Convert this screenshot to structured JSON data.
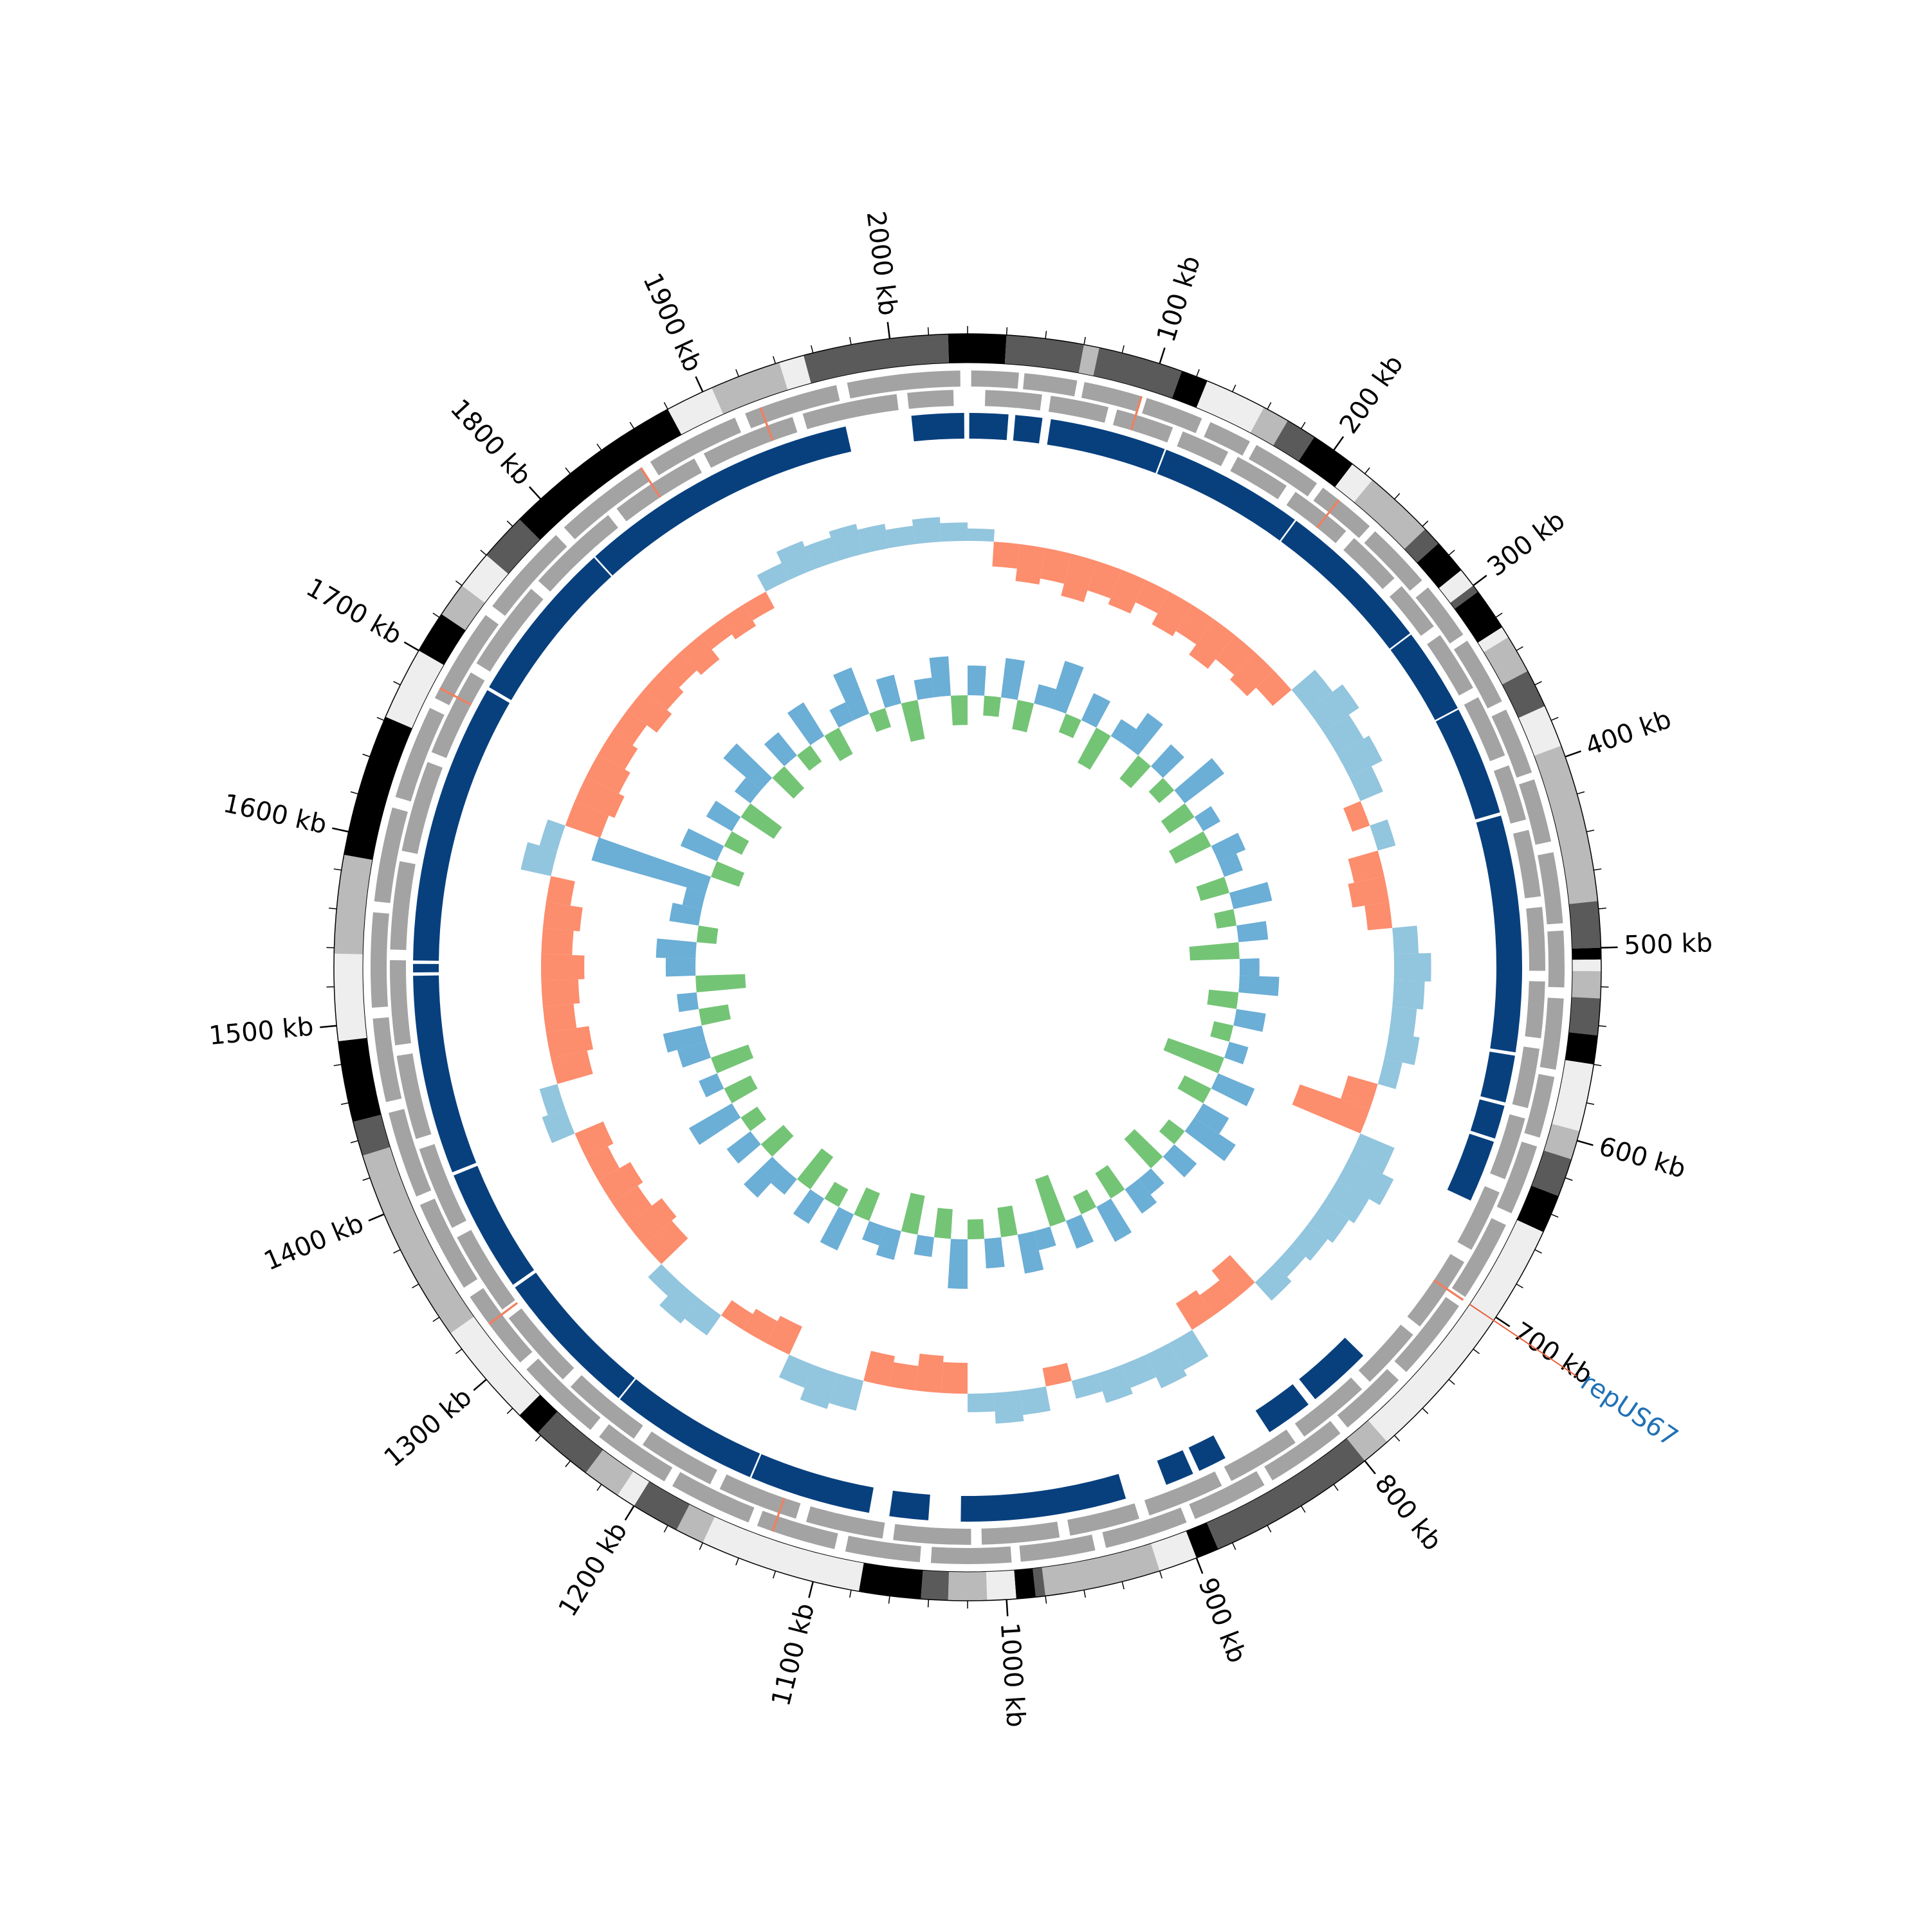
{
  "chart_data": {
    "type": "circos",
    "length_kb": 2040,
    "minor_tick_step": 20,
    "ticks": [
      {
        "value": 100,
        "label": "100 kb"
      },
      {
        "value": 200,
        "label": "200 kb"
      },
      {
        "value": 300,
        "label": "300 kb"
      },
      {
        "value": 400,
        "label": "400 kb"
      },
      {
        "value": 500,
        "label": "500 kb"
      },
      {
        "value": 600,
        "label": "600 kb"
      },
      {
        "value": 700,
        "label": "700 kb"
      },
      {
        "value": 800,
        "label": "800 kb"
      },
      {
        "value": 900,
        "label": "900 kb"
      },
      {
        "value": 1000,
        "label": "1000 kb"
      },
      {
        "value": 1100,
        "label": "1100 kb"
      },
      {
        "value": 1200,
        "label": "1200 kb"
      },
      {
        "value": 1300,
        "label": "1300 kb"
      },
      {
        "value": 1400,
        "label": "1400 kb"
      },
      {
        "value": 1500,
        "label": "1500 kb"
      },
      {
        "value": 1600,
        "label": "1600 kb"
      },
      {
        "value": 1700,
        "label": "1700 kb"
      },
      {
        "value": 1800,
        "label": "1800 kb"
      },
      {
        "value": 1900,
        "label": "1900 kb"
      },
      {
        "value": 2000,
        "label": "2000 kb"
      }
    ],
    "contigs": {
      "starts": [
        0,
        20,
        60,
        68,
        112,
        126,
        158,
        172,
        188,
        212,
        225,
        262,
        272,
        290,
        300,
        304,
        326,
        332,
        352,
        372,
        394,
        476,
        500,
        506,
        512,
        526,
        545,
        560,
        595,
        610,
        630,
        650,
        785,
        800,
        888,
        900,
        920,
        980,
        985,
        995,
        1010,
        1030,
        1044,
        1076,
        1160,
        1175,
        1200,
        1210,
        1230,
        1262,
        1275,
        1330,
        1432,
        1450,
        1492,
        1537,
        1588,
        1662,
        1700,
        1722,
        1740,
        1760,
        1785,
        1880,
        1905,
        1942,
        1955,
        2030
      ],
      "ends": [
        20,
        60,
        68,
        112,
        126,
        158,
        172,
        188,
        212,
        225,
        262,
        272,
        290,
        300,
        304,
        326,
        332,
        352,
        372,
        394,
        476,
        500,
        506,
        512,
        526,
        545,
        560,
        595,
        610,
        630,
        650,
        785,
        800,
        888,
        900,
        920,
        980,
        985,
        995,
        1010,
        1030,
        1044,
        1076,
        1160,
        1175,
        1200,
        1210,
        1230,
        1262,
        1275,
        1330,
        1432,
        1450,
        1492,
        1537,
        1588,
        1662,
        1700,
        1722,
        1740,
        1760,
        1785,
        1880,
        1905,
        1942,
        1955,
        2030,
        2040
      ],
      "colors": [
        "#000000",
        "#5a5a5a",
        "#bababa",
        "#5a5a5a",
        "#000000",
        "#eeeeee",
        "#bababa",
        "#5a5a5a",
        "#000000",
        "#eeeeee",
        "#bababa",
        "#5a5a5a",
        "#000000",
        "#eeeeee",
        "#5a5a5a",
        "#000000",
        "#eeeeee",
        "#bababa",
        "#5a5a5a",
        "#eeeeee",
        "#bababa",
        "#5a5a5a",
        "#000000",
        "#eeeeee",
        "#bababa",
        "#5a5a5a",
        "#000000",
        "#eeeeee",
        "#bababa",
        "#5a5a5a",
        "#000000",
        "#eeeeee",
        "#bababa",
        "#5a5a5a",
        "#000000",
        "#eeeeee",
        "#bababa",
        "#5a5a5a",
        "#000000",
        "#eeeeee",
        "#bababa",
        "#5a5a5a",
        "#000000",
        "#eeeeee",
        "#bababa",
        "#5a5a5a",
        "#eeeeee",
        "#bababa",
        "#5a5a5a",
        "#000000",
        "#eeeeee",
        "#bababa",
        "#5a5a5a",
        "#000000",
        "#eeeeee",
        "#bababa",
        "#000000",
        "#eeeeee",
        "#000000",
        "#bababa",
        "#eeeeee",
        "#5a5a5a",
        "#000000",
        "#eeeeee",
        "#bababa",
        "#eeeeee",
        "#5a5a5a",
        "#000000"
      ]
    },
    "genes": {
      "color": "#a3a3a3",
      "rna_color": "#f08060",
      "forward": [
        [
          2,
          28
        ],
        [
          31,
          60
        ],
        [
          64,
          96
        ],
        [
          99,
          131
        ],
        [
          136,
          160
        ],
        [
          164,
          203
        ],
        [
          207,
          240
        ],
        [
          244,
          281
        ],
        [
          286,
          318
        ],
        [
          322,
          360
        ],
        [
          365,
          402
        ],
        [
          406,
          441
        ],
        [
          447,
          486
        ],
        [
          490,
          521
        ],
        [
          527,
          566
        ],
        [
          570,
          604
        ],
        [
          609,
          648
        ],
        [
          655,
          700
        ],
        [
          706,
          752
        ],
        [
          758,
          796
        ],
        [
          801,
          846
        ],
        [
          851,
          893
        ],
        [
          898,
          944
        ],
        [
          950,
          991
        ],
        [
          996,
          1040
        ],
        [
          1046,
          1087
        ],
        [
          1093,
          1137
        ],
        [
          1142,
          1188
        ],
        [
          1193,
          1236
        ],
        [
          1242,
          1290
        ],
        [
          1295,
          1340
        ],
        [
          1346,
          1397
        ],
        [
          1402,
          1450
        ],
        [
          1456,
          1502
        ],
        [
          1508,
          1560
        ],
        [
          1566,
          1618
        ],
        [
          1624,
          1676
        ],
        [
          1682,
          1735
        ],
        [
          1741,
          1793
        ],
        [
          1799,
          1852
        ],
        [
          1858,
          1910
        ],
        [
          1916,
          1968
        ],
        [
          1974,
          2036
        ]
      ],
      "reverse": [
        [
          10,
          42
        ],
        [
          47,
          80
        ],
        [
          85,
          118
        ],
        [
          124,
          152
        ],
        [
          158,
          190
        ],
        [
          196,
          232
        ],
        [
          238,
          270
        ],
        [
          276,
          305
        ],
        [
          311,
          346
        ],
        [
          352,
          388
        ],
        [
          394,
          426
        ],
        [
          432,
          470
        ],
        [
          476,
          512
        ],
        [
          518,
          550
        ],
        [
          556,
          590
        ],
        [
          596,
          632
        ],
        [
          640,
          676
        ],
        [
          684,
          728
        ],
        [
          734,
          770
        ],
        [
          776,
          818
        ],
        [
          824,
          866
        ],
        [
          872,
          916
        ],
        [
          922,
          962
        ],
        [
          968,
          1012
        ],
        [
          1018,
          1062
        ],
        [
          1068,
          1112
        ],
        [
          1118,
          1164
        ],
        [
          1170,
          1214
        ],
        [
          1220,
          1266
        ],
        [
          1272,
          1318
        ],
        [
          1324,
          1372
        ],
        [
          1378,
          1426
        ],
        [
          1432,
          1480
        ],
        [
          1486,
          1534
        ],
        [
          1540,
          1590
        ],
        [
          1596,
          1648
        ],
        [
          1654,
          1704
        ],
        [
          1710,
          1762
        ],
        [
          1768,
          1822
        ],
        [
          1828,
          1880
        ],
        [
          1886,
          1940
        ],
        [
          1946,
          2000
        ],
        [
          2006,
          2032
        ]
      ],
      "rna": [
        96,
        218,
        702,
        1128,
        1322,
        1688,
        1852,
        1925
      ]
    },
    "alignment": {
      "color": "#08407e",
      "blocks": [
        [
          2007,
          2038
        ],
        [
          1,
          24
        ],
        [
          28,
          44
        ],
        [
          49,
          118
        ],
        [
          119,
          205
        ],
        [
          206,
          300
        ],
        [
          301,
          352
        ],
        [
          353,
          418
        ],
        [
          420,
          560
        ],
        [
          562,
          590
        ],
        [
          592,
          612
        ],
        [
          614,
          651
        ],
        [
          762,
          800
        ],
        [
          805,
          833
        ],
        [
          863,
          880
        ],
        [
          884,
          901
        ],
        [
          926,
          1024
        ],
        [
          1043,
          1066
        ],
        [
          1078,
          1150
        ],
        [
          1151,
          1240
        ],
        [
          1241,
          1330
        ],
        [
          1332,
          1405
        ],
        [
          1407,
          1525
        ],
        [
          1527,
          1532
        ],
        [
          1534,
          1700
        ],
        [
          1702,
          1800
        ],
        [
          1801,
          1968
        ]
      ]
    },
    "gc_skew": {
      "window_kb": 20,
      "positive_color": "#92c5de",
      "negative_color": "#fc8d6d",
      "values": [
        0.02,
        -0.04,
        -0.06,
        -0.05,
        -0.07,
        -0.05,
        -0.06,
        -0.04,
        -0.06,
        -0.05,
        -0.07,
        -0.05,
        -0.06,
        -0.04,
        0.05,
        0.07,
        0.05,
        0.06,
        0.04,
        -0.03,
        0.03,
        -0.05,
        -0.06,
        -0.04,
        0.04,
        0.06,
        0.05,
        0.04,
        0.05,
        0.03,
        -0.05,
        -0.12,
        0.06,
        0.08,
        0.06,
        0.05,
        0.04,
        0.03,
        0.04,
        -0.06,
        -0.04,
        -0.05,
        0.05,
        0.06,
        0.04,
        0.05,
        0.03,
        -0.03,
        0.04,
        0.05,
        0.03,
        -0.05,
        -0.06,
        -0.04,
        -0.05,
        0.05,
        0.06,
        0.04,
        -0.05,
        -0.04,
        -0.03,
        0.04,
        0.05,
        0.03,
        -0.06,
        -0.07,
        -0.05,
        -0.06,
        -0.04,
        -0.05,
        0.04,
        0.03,
        -0.06,
        -0.07,
        -0.05,
        -0.06,
        -0.07,
        -0.05,
        -0.06,
        -0.04,
        0.05,
        0.03,
        -0.06,
        -0.07,
        -0.06,
        -0.05,
        -0.04,
        -0.06,
        -0.05,
        -0.04,
        -0.05,
        -0.03,
        -0.04,
        -0.03,
        0.03,
        0.05,
        0.04,
        0.05,
        0.04,
        0.03,
        0.04,
        0.03
      ]
    },
    "gc_content": {
      "window_kb": 20,
      "positive_color": "#6baed6",
      "negative_color": "#74c476",
      "values": [
        0.03,
        -0.02,
        0.04,
        -0.03,
        0.02,
        0.05,
        -0.02,
        0.03,
        -0.04,
        0.02,
        0.04,
        -0.03,
        0.03,
        -0.02,
        0.05,
        -0.03,
        0.02,
        -0.04,
        0.03,
        0.02,
        -0.03,
        0.04,
        -0.02,
        0.03,
        -0.05,
        0.02,
        0.04,
        -0.03,
        0.03,
        -0.02,
        0.02,
        -0.06,
        0.04,
        -0.03,
        0.03,
        0.05,
        -0.02,
        0.03,
        -0.04,
        0.02,
        0.03,
        -0.03,
        0.04,
        -0.02,
        0.03,
        -0.05,
        0.02,
        0.04,
        -0.03,
        0.03,
        -0.02,
        0.05,
        -0.03,
        0.02,
        -0.04,
        0.03,
        0.02,
        -0.03,
        0.04,
        -0.02,
        0.03,
        -0.04,
        0.02,
        0.04,
        -0.03,
        0.03,
        -0.02,
        0.05,
        -0.03,
        0.02,
        -0.04,
        0.03,
        0.04,
        -0.03,
        0.02,
        -0.05,
        0.03,
        0.04,
        -0.02,
        0.03,
        0.02,
        0.12,
        -0.03,
        0.04,
        -0.02,
        0.03,
        -0.04,
        0.02,
        0.05,
        -0.03,
        0.03,
        -0.02,
        0.04,
        -0.03,
        0.02,
        0.05,
        -0.02,
        0.03,
        -0.04,
        0.02,
        0.04,
        -0.03
      ]
    },
    "annotations": [
      {
        "label": "repUS67",
        "position": 702,
        "line_color": "#e8603c",
        "text_color": "#2171b5"
      }
    ]
  }
}
